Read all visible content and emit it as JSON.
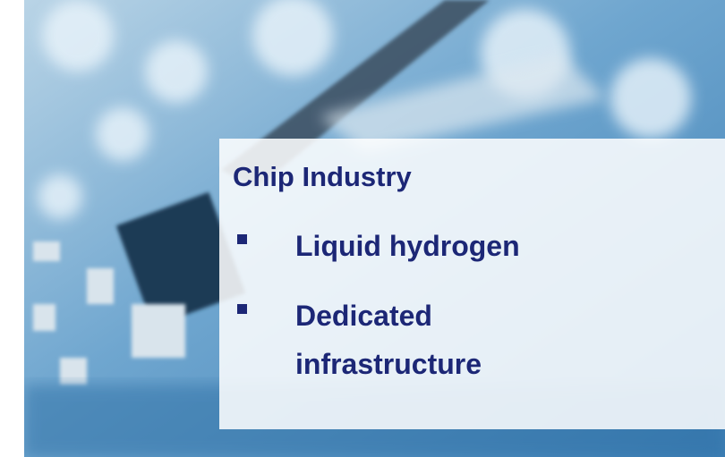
{
  "slide": {
    "title": "Chip Industry",
    "bullets": [
      "Liquid hydrogen",
      "Dedicated infrastructure"
    ]
  }
}
